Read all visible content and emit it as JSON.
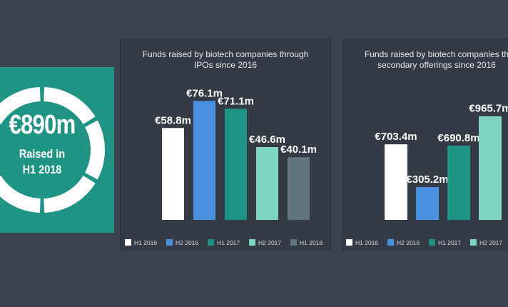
{
  "summary": {
    "amount": "€890m",
    "label_line1": "Raised in",
    "label_line2": "H1 2018",
    "colors": {
      "panel": "#1f9484",
      "ring": "#ffffff"
    }
  },
  "chart_data": [
    {
      "type": "bar",
      "title_line1": "Funds raised by biotech companies through",
      "title_line2": "IPOs  since 2016",
      "categories": [
        "H1 2016",
        "H2 2016",
        "H1 2017",
        "H2 2017",
        "H1 2018"
      ],
      "values": [
        58.8,
        76.1,
        71.1,
        46.6,
        40.1
      ],
      "labels": [
        "€58.8m",
        "€76.1m",
        "€71.1m",
        "€46.6m",
        "€40.1m"
      ],
      "colors": [
        "#ffffff",
        "#4a8fe0",
        "#1f9484",
        "#7fd4c1",
        "#60767c"
      ],
      "ylim": [
        0,
        90
      ],
      "legend": "bottom",
      "grid": false
    },
    {
      "type": "bar",
      "title_line1": "Funds raised by biotech companies th",
      "title_line2": "secondary offerings since 2016",
      "categories": [
        "H1 2016",
        "H2 2016",
        "H1 2017",
        "H2 2017"
      ],
      "values": [
        703.4,
        305.2,
        690.8,
        965.7
      ],
      "labels": [
        "€703.4m",
        "€305.2m",
        "€690.8m",
        "€965.7m"
      ],
      "colors": [
        "#ffffff",
        "#4a8fe0",
        "#1f9484",
        "#7fd4c1"
      ],
      "ylim": [
        0,
        1130
      ],
      "legend": "bottom",
      "grid": false,
      "truncated_label": "€"
    }
  ]
}
